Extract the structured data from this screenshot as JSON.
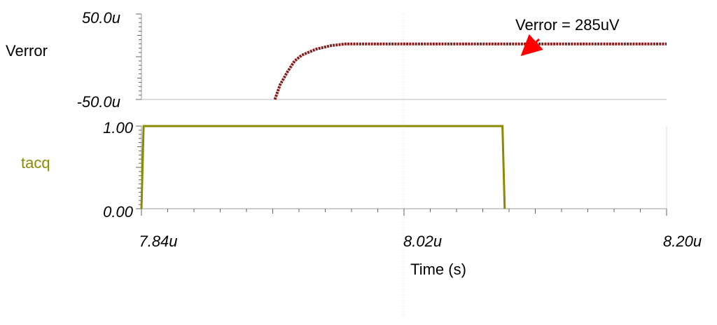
{
  "chart_data": [
    {
      "type": "line",
      "ylabel": "Verror",
      "ylim": [
        -5e-05,
        5e-05
      ],
      "ytick_labels": [
        "50.0u",
        "-50.0u"
      ],
      "annotation": "Verror = 285uV",
      "color": "#8b1a1a",
      "grid": "vertical dotted at 8.02u",
      "series": [
        {
          "x": [
            7.9315e-06,
            7.935e-06,
            7.94e-06,
            7.945e-06,
            7.95e-06,
            7.96e-06,
            7.97e-06,
            7.98e-06,
            8.2e-06
          ],
          "y": [
            -5e-05,
            -3.3e-05,
            -1.8e-05,
            -5e-06,
            2e-06,
            9e-06,
            1.3e-05,
            1.5e-05,
            1.5e-05
          ]
        }
      ]
    },
    {
      "type": "line",
      "ylabel": "tacq",
      "ylim": [
        0,
        1
      ],
      "ytick_labels": [
        "1.00",
        "0.00"
      ],
      "color": "#8b8b00",
      "xlim": [
        7.84e-06,
        8.2e-06
      ],
      "xtick_labels": [
        "7.84u",
        "8.02u",
        "8.20u"
      ],
      "xlabel": "Time (s)",
      "series": [
        {
          "x": [
            7.84e-06,
            7.8415e-06,
            8.0875e-06,
            8.089e-06
          ],
          "y": [
            0,
            1,
            1,
            0
          ]
        }
      ]
    }
  ]
}
